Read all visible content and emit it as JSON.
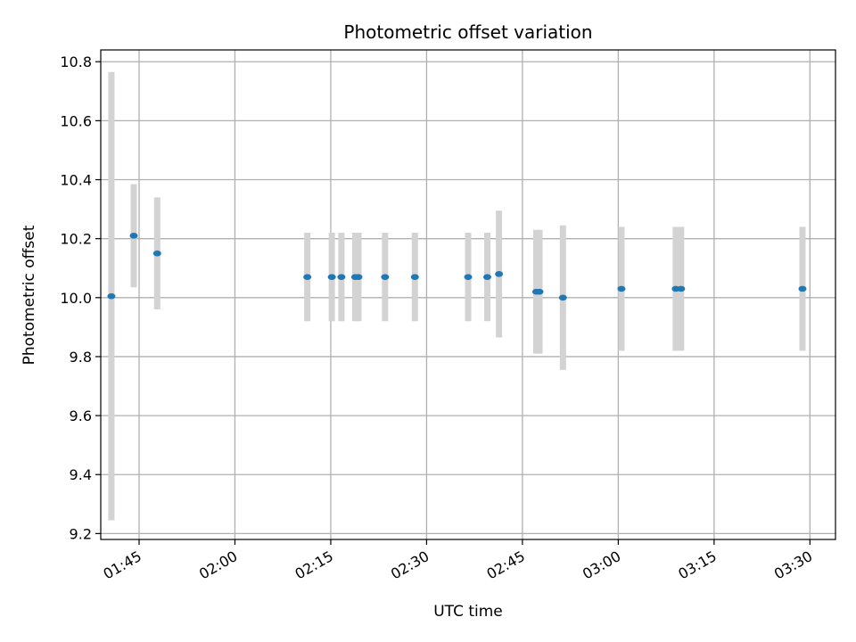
{
  "chart_data": {
    "type": "scatter",
    "title": "Photometric offset variation",
    "xlabel": "UTC time",
    "ylabel": "Photometric offset",
    "grid": true,
    "xlim": [
      "01:39",
      "03:34"
    ],
    "ylim": [
      9.18,
      10.84
    ],
    "x_ticks": [
      "01:45",
      "02:00",
      "02:15",
      "02:30",
      "02:45",
      "03:00",
      "03:15",
      "03:30"
    ],
    "y_ticks": [
      "9.2",
      "9.4",
      "9.6",
      "9.8",
      "10.0",
      "10.2",
      "10.4",
      "10.6",
      "10.8"
    ],
    "colors": {
      "point": "#1f77b4",
      "errorbar": "#d3d3d3",
      "grid": "#b0b0b0"
    },
    "points": [
      {
        "t": "01:40:40",
        "y": 10.005,
        "err": 0.76
      },
      {
        "t": "01:44:10",
        "y": 10.21,
        "err": 0.175
      },
      {
        "t": "01:47:50",
        "y": 10.15,
        "err": 0.19
      },
      {
        "t": "02:11:20",
        "y": 10.07,
        "err": 0.15
      },
      {
        "t": "02:15:10",
        "y": 10.07,
        "err": 0.15
      },
      {
        "t": "02:16:40",
        "y": 10.07,
        "err": 0.15
      },
      {
        "t": "02:18:50",
        "y": 10.07,
        "err": 0.15
      },
      {
        "t": "02:19:20",
        "y": 10.07,
        "err": 0.15
      },
      {
        "t": "02:23:30",
        "y": 10.07,
        "err": 0.15
      },
      {
        "t": "02:28:10",
        "y": 10.07,
        "err": 0.15
      },
      {
        "t": "02:36:30",
        "y": 10.07,
        "err": 0.15
      },
      {
        "t": "02:39:30",
        "y": 10.07,
        "err": 0.15
      },
      {
        "t": "02:41:20",
        "y": 10.08,
        "err": 0.215
      },
      {
        "t": "02:47:10",
        "y": 10.02,
        "err": 0.21
      },
      {
        "t": "02:47:40",
        "y": 10.02,
        "err": 0.21
      },
      {
        "t": "02:51:20",
        "y": 10.0,
        "err": 0.245
      },
      {
        "t": "03:00:30",
        "y": 10.03,
        "err": 0.21
      },
      {
        "t": "03:09:00",
        "y": 10.03,
        "err": 0.21
      },
      {
        "t": "03:09:50",
        "y": 10.03,
        "err": 0.21
      },
      {
        "t": "03:28:50",
        "y": 10.03,
        "err": 0.21
      }
    ]
  }
}
